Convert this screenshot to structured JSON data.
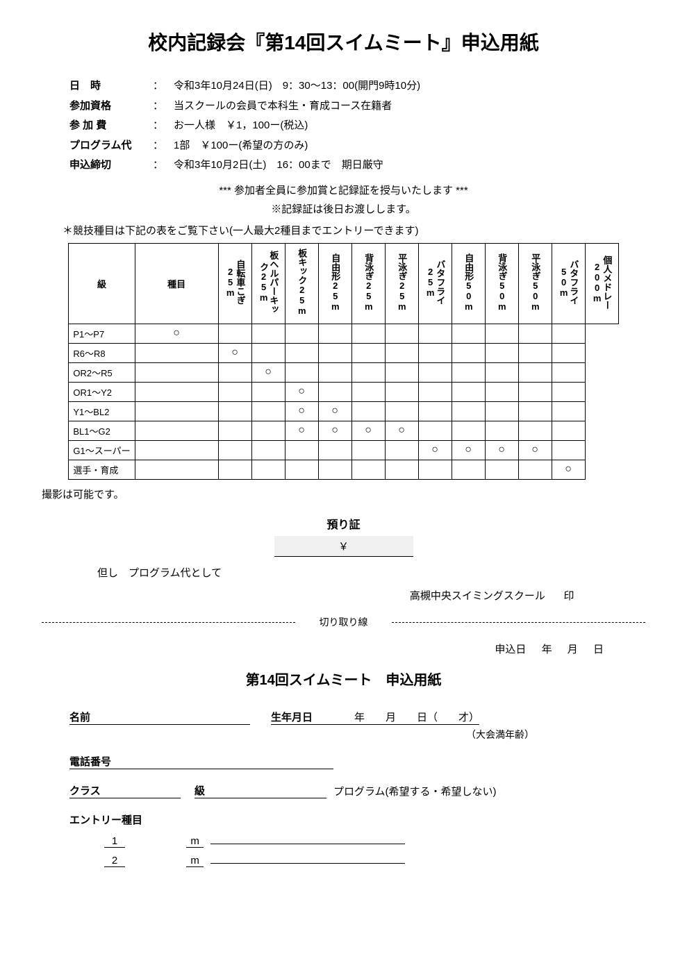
{
  "title": "校内記録会『第14回スイムミート』申込用紙",
  "info": {
    "date_label": "日　時",
    "date_value": "令和3年10月24日(日)　9：30～13：00(開門9時10分)",
    "qual_label": "参加資格",
    "qual_value": "当スクールの会員で本科生・育成コース在籍者",
    "fee_label": "参 加 費",
    "fee_value": "お一人様　￥1，100ー(税込)",
    "prog_label": "プログラム代",
    "prog_value": "1部　￥100ー(希望の方のみ)",
    "deadline_label": "申込締切",
    "deadline_value": "令和3年10月2日(土)　16：00まで　期日厳守"
  },
  "notes": {
    "award": "*** 参加者全員に参加賞と記録証を授与いたします ***",
    "record_later": "※記録証は後日お渡しします。",
    "see_table": "＊競技種目は下記の表をご覧下さい(一人最大2種目までエントリーできます)"
  },
  "table": {
    "row_header": "級",
    "name_header": "種目",
    "columns": [
      "自転車こぎ25m",
      "板ヘルパーキック25m",
      "板キック25m",
      "自由形25m",
      "背泳ぎ25m",
      "平泳ぎ25m",
      "バタフライ25m",
      "自由形50m",
      "背泳ぎ50m",
      "平泳ぎ50m",
      "バタフライ50m",
      "個人メドレー200m"
    ],
    "rows": [
      {
        "level": "P1～P7",
        "marks": [
          "○",
          "",
          "",
          "",
          "",
          "",
          "",
          "",
          "",
          "",
          "",
          ""
        ]
      },
      {
        "level": "R6～R8",
        "marks": [
          "",
          "○",
          "",
          "",
          "",
          "",
          "",
          "",
          "",
          "",
          "",
          ""
        ]
      },
      {
        "level": "OR2～R5",
        "marks": [
          "",
          "",
          "○",
          "",
          "",
          "",
          "",
          "",
          "",
          "",
          "",
          ""
        ]
      },
      {
        "level": "OR1～Y2",
        "marks": [
          "",
          "",
          "",
          "○",
          "",
          "",
          "",
          "",
          "",
          "",
          "",
          ""
        ]
      },
      {
        "level": "Y1～BL2",
        "marks": [
          "",
          "",
          "",
          "○",
          "○",
          "",
          "",
          "",
          "",
          "",
          "",
          ""
        ]
      },
      {
        "level": "BL1～G2",
        "marks": [
          "",
          "",
          "",
          "○",
          "○",
          "○",
          "○",
          "",
          "",
          "",
          "",
          ""
        ]
      },
      {
        "level": "G1～スーパー",
        "marks": [
          "",
          "",
          "",
          "",
          "",
          "",
          "",
          "○",
          "○",
          "○",
          "○",
          ""
        ]
      },
      {
        "level": "選手・育成",
        "marks": [
          "",
          "",
          "",
          "",
          "",
          "",
          "",
          "",
          "",
          "",
          "",
          "○"
        ]
      }
    ]
  },
  "photo_note": "撮影は可能です。",
  "receipt": {
    "title": "預り証",
    "yen": "￥",
    "note": "但し　プログラム代として",
    "school": "高槻中央スイミングスクール",
    "seal": "印"
  },
  "cut_label": "切り取り線",
  "apply_date": {
    "label": "申込日",
    "y": "年",
    "m": "月",
    "d": "日"
  },
  "form_title": "第14回スイムミート　申込用紙",
  "form": {
    "name": "名前",
    "birth": "生年月日",
    "y": "年",
    "m": "月",
    "d": "日（",
    "age_suffix": "才）",
    "age_note": "（大会満年齢）",
    "phone": "電話番号",
    "class": "クラス",
    "grade": "級",
    "program": "プログラム(希望する・希望しない)",
    "entry_label": "エントリー種目",
    "m_unit": "m",
    "row1": "1",
    "row2": "2"
  }
}
